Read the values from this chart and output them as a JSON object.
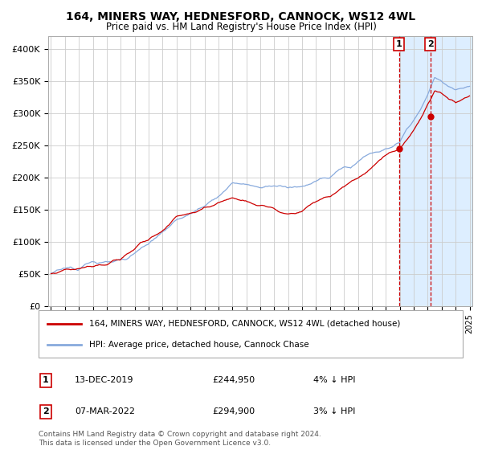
{
  "title": "164, MINERS WAY, HEDNESFORD, CANNOCK, WS12 4WL",
  "subtitle": "Price paid vs. HM Land Registry's House Price Index (HPI)",
  "legend_line1": "164, MINERS WAY, HEDNESFORD, CANNOCK, WS12 4WL (detached house)",
  "legend_line2": "HPI: Average price, detached house, Cannock Chase",
  "footer": "Contains HM Land Registry data © Crown copyright and database right 2024.\nThis data is licensed under the Open Government Licence v3.0.",
  "annotation1_label": "1",
  "annotation1_date": "13-DEC-2019",
  "annotation1_price": "£244,950",
  "annotation1_hpi": "4% ↓ HPI",
  "annotation1_year": 2019.95,
  "annotation1_value": 244950,
  "annotation2_label": "2",
  "annotation2_date": "07-MAR-2022",
  "annotation2_price": "£294,900",
  "annotation2_hpi": "3% ↓ HPI",
  "annotation2_year": 2022.18,
  "annotation2_value": 294900,
  "red_line_color": "#cc0000",
  "blue_line_color": "#88aadd",
  "shading_color": "#ddeeff",
  "grid_color": "#cccccc",
  "background_color": "#ffffff",
  "ylim": [
    0,
    420000
  ],
  "yticks": [
    0,
    50000,
    100000,
    150000,
    200000,
    250000,
    300000,
    350000,
    400000
  ],
  "ytick_labels": [
    "£0",
    "£50K",
    "£100K",
    "£150K",
    "£200K",
    "£250K",
    "£300K",
    "£350K",
    "£400K"
  ],
  "start_year": 1995,
  "end_year": 2025
}
